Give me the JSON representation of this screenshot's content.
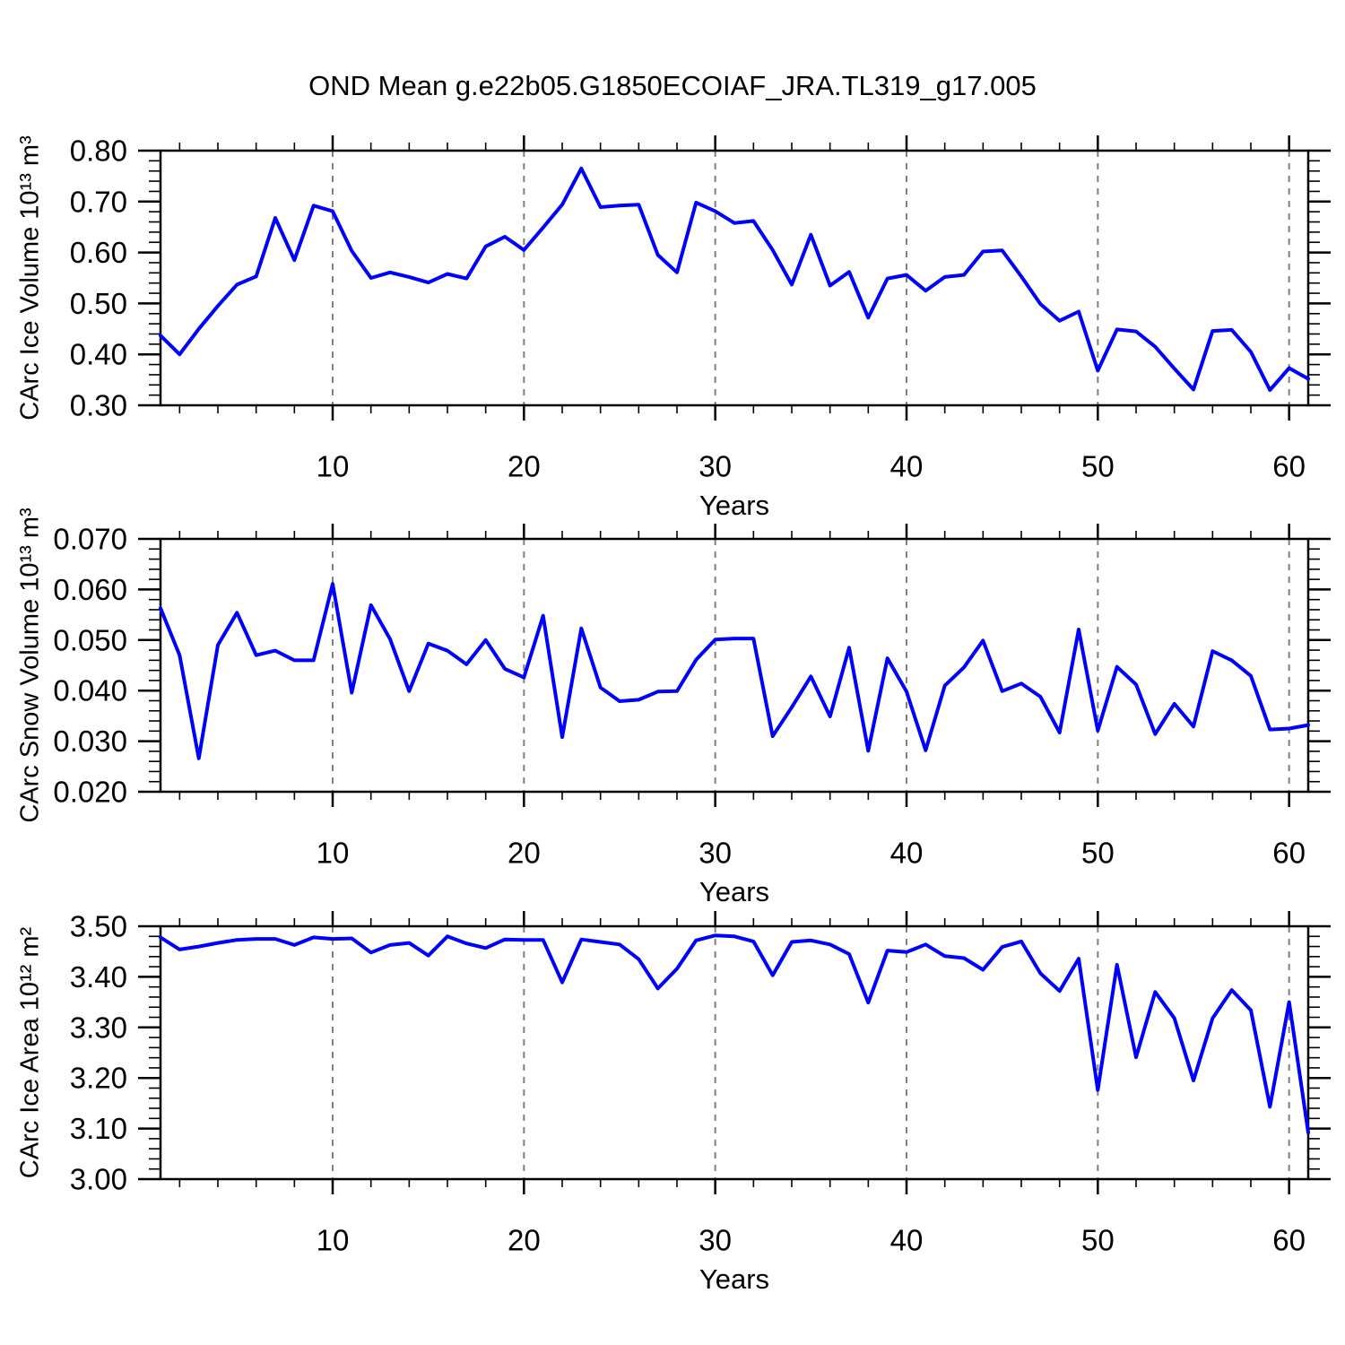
{
  "title": "OND Mean g.e22b05.G1850ECOIAF_JRA.TL319_g17.005",
  "colors": {
    "line": "#0000ff",
    "axis": "#000000",
    "grid": "#808080",
    "background": "#ffffff",
    "text": "#000000"
  },
  "chart_data": [
    {
      "type": "line",
      "id": "carc-ice-volume",
      "ylabel": "CArc Ice Volume 10¹³ m³",
      "xlabel": "Years",
      "xlim": [
        1,
        61
      ],
      "ylim": [
        0.3,
        0.8
      ],
      "xticks": {
        "values": [
          10,
          20,
          30,
          40,
          50,
          60
        ],
        "labels": [
          "10",
          "20",
          "30",
          "40",
          "50",
          "60"
        ]
      },
      "x_minor_step": 2,
      "yticks": {
        "values": [
          0.3,
          0.4,
          0.5,
          0.6,
          0.7,
          0.8
        ],
        "labels": [
          "0.30",
          "0.40",
          "0.50",
          "0.60",
          "0.70",
          "0.80"
        ]
      },
      "y_minor_step": 0.02,
      "grid": {
        "vertical_dashed": true,
        "horizontal": false
      },
      "x": [
        1,
        2,
        3,
        4,
        5,
        6,
        7,
        8,
        9,
        10,
        11,
        12,
        13,
        14,
        15,
        16,
        17,
        18,
        19,
        20,
        21,
        22,
        23,
        24,
        25,
        26,
        27,
        28,
        29,
        30,
        31,
        32,
        33,
        34,
        35,
        36,
        37,
        38,
        39,
        40,
        41,
        42,
        43,
        44,
        45,
        46,
        47,
        48,
        49,
        50,
        51,
        52,
        53,
        54,
        55,
        56,
        57,
        58,
        59,
        60,
        61
      ],
      "values": [
        0.437,
        0.4,
        0.45,
        0.495,
        0.537,
        0.553,
        0.668,
        0.585,
        0.692,
        0.681,
        0.603,
        0.55,
        0.561,
        0.552,
        0.541,
        0.558,
        0.549,
        0.612,
        0.631,
        0.605,
        0.649,
        0.694,
        0.765,
        0.689,
        0.692,
        0.694,
        0.595,
        0.561,
        0.698,
        0.681,
        0.658,
        0.662,
        0.605,
        0.537,
        0.635,
        0.535,
        0.562,
        0.472,
        0.549,
        0.556,
        0.525,
        0.552,
        0.556,
        0.602,
        0.604,
        0.553,
        0.499,
        0.466,
        0.484,
        0.368,
        0.449,
        0.445,
        0.415,
        0.372,
        0.331,
        0.446,
        0.448,
        0.405,
        0.33,
        0.373,
        0.352
      ]
    },
    {
      "type": "line",
      "id": "carc-snow-volume",
      "ylabel": "CArc Snow Volume 10¹³ m³",
      "xlabel": "Years",
      "xlim": [
        1,
        61
      ],
      "ylim": [
        0.02,
        0.07
      ],
      "xticks": {
        "values": [
          10,
          20,
          30,
          40,
          50,
          60
        ],
        "labels": [
          "10",
          "20",
          "30",
          "40",
          "50",
          "60"
        ]
      },
      "x_minor_step": 2,
      "yticks": {
        "values": [
          0.02,
          0.03,
          0.04,
          0.05,
          0.06,
          0.07
        ],
        "labels": [
          "0.020",
          "0.030",
          "0.040",
          "0.050",
          "0.060",
          "0.070"
        ]
      },
      "y_minor_step": 0.002,
      "grid": {
        "vertical_dashed": true,
        "horizontal": false
      },
      "x": [
        1,
        2,
        3,
        4,
        5,
        6,
        7,
        8,
        9,
        10,
        11,
        12,
        13,
        14,
        15,
        16,
        17,
        18,
        19,
        20,
        21,
        22,
        23,
        24,
        25,
        26,
        27,
        28,
        29,
        30,
        31,
        32,
        33,
        34,
        35,
        36,
        37,
        38,
        39,
        40,
        41,
        42,
        43,
        44,
        45,
        46,
        47,
        48,
        49,
        50,
        51,
        52,
        53,
        54,
        55,
        56,
        57,
        58,
        59,
        60,
        61
      ],
      "values": [
        0.0563,
        0.047,
        0.0266,
        0.049,
        0.0554,
        0.047,
        0.0479,
        0.046,
        0.046,
        0.0611,
        0.0396,
        0.0569,
        0.0502,
        0.0399,
        0.0493,
        0.0479,
        0.0452,
        0.05,
        0.0443,
        0.0426,
        0.0548,
        0.0308,
        0.0523,
        0.0406,
        0.0379,
        0.0382,
        0.0398,
        0.0399,
        0.0461,
        0.0501,
        0.0503,
        0.0503,
        0.031,
        0.0367,
        0.0428,
        0.0349,
        0.0485,
        0.0281,
        0.0464,
        0.0398,
        0.0282,
        0.041,
        0.0446,
        0.0499,
        0.0399,
        0.0414,
        0.0388,
        0.0317,
        0.0521,
        0.0321,
        0.0447,
        0.0412,
        0.0314,
        0.0374,
        0.0329,
        0.0478,
        0.046,
        0.0429,
        0.0323,
        0.0325,
        0.0332
      ]
    },
    {
      "type": "line",
      "id": "carc-ice-area",
      "ylabel": "CArc Ice Area 10¹² m²",
      "xlabel": "Years",
      "xlim": [
        1,
        61
      ],
      "ylim": [
        3.0,
        3.5
      ],
      "xticks": {
        "values": [
          10,
          20,
          30,
          40,
          50,
          60
        ],
        "labels": [
          "10",
          "20",
          "30",
          "40",
          "50",
          "60"
        ]
      },
      "x_minor_step": 2,
      "yticks": {
        "values": [
          3.0,
          3.1,
          3.2,
          3.3,
          3.4,
          3.5
        ],
        "labels": [
          "3.00",
          "3.10",
          "3.20",
          "3.30",
          "3.40",
          "3.50"
        ]
      },
      "y_minor_step": 0.02,
      "grid": {
        "vertical_dashed": true,
        "horizontal": false
      },
      "x": [
        1,
        2,
        3,
        4,
        5,
        6,
        7,
        8,
        9,
        10,
        11,
        12,
        13,
        14,
        15,
        16,
        17,
        18,
        19,
        20,
        21,
        22,
        23,
        24,
        25,
        26,
        27,
        28,
        29,
        30,
        31,
        32,
        33,
        34,
        35,
        36,
        37,
        38,
        39,
        40,
        41,
        42,
        43,
        44,
        45,
        46,
        47,
        48,
        49,
        50,
        51,
        52,
        53,
        54,
        55,
        56,
        57,
        58,
        59,
        60,
        61
      ],
      "values": [
        3.478,
        3.454,
        3.46,
        3.467,
        3.473,
        3.475,
        3.475,
        3.463,
        3.478,
        3.475,
        3.476,
        3.448,
        3.463,
        3.467,
        3.442,
        3.48,
        3.466,
        3.457,
        3.474,
        3.473,
        3.473,
        3.389,
        3.474,
        3.469,
        3.464,
        3.435,
        3.377,
        3.416,
        3.472,
        3.482,
        3.48,
        3.47,
        3.403,
        3.469,
        3.472,
        3.464,
        3.445,
        3.349,
        3.452,
        3.449,
        3.464,
        3.441,
        3.437,
        3.414,
        3.459,
        3.47,
        3.407,
        3.372,
        3.436,
        3.176,
        3.424,
        3.241,
        3.37,
        3.318,
        3.195,
        3.318,
        3.374,
        3.334,
        3.143,
        3.35,
        3.092
      ]
    }
  ]
}
